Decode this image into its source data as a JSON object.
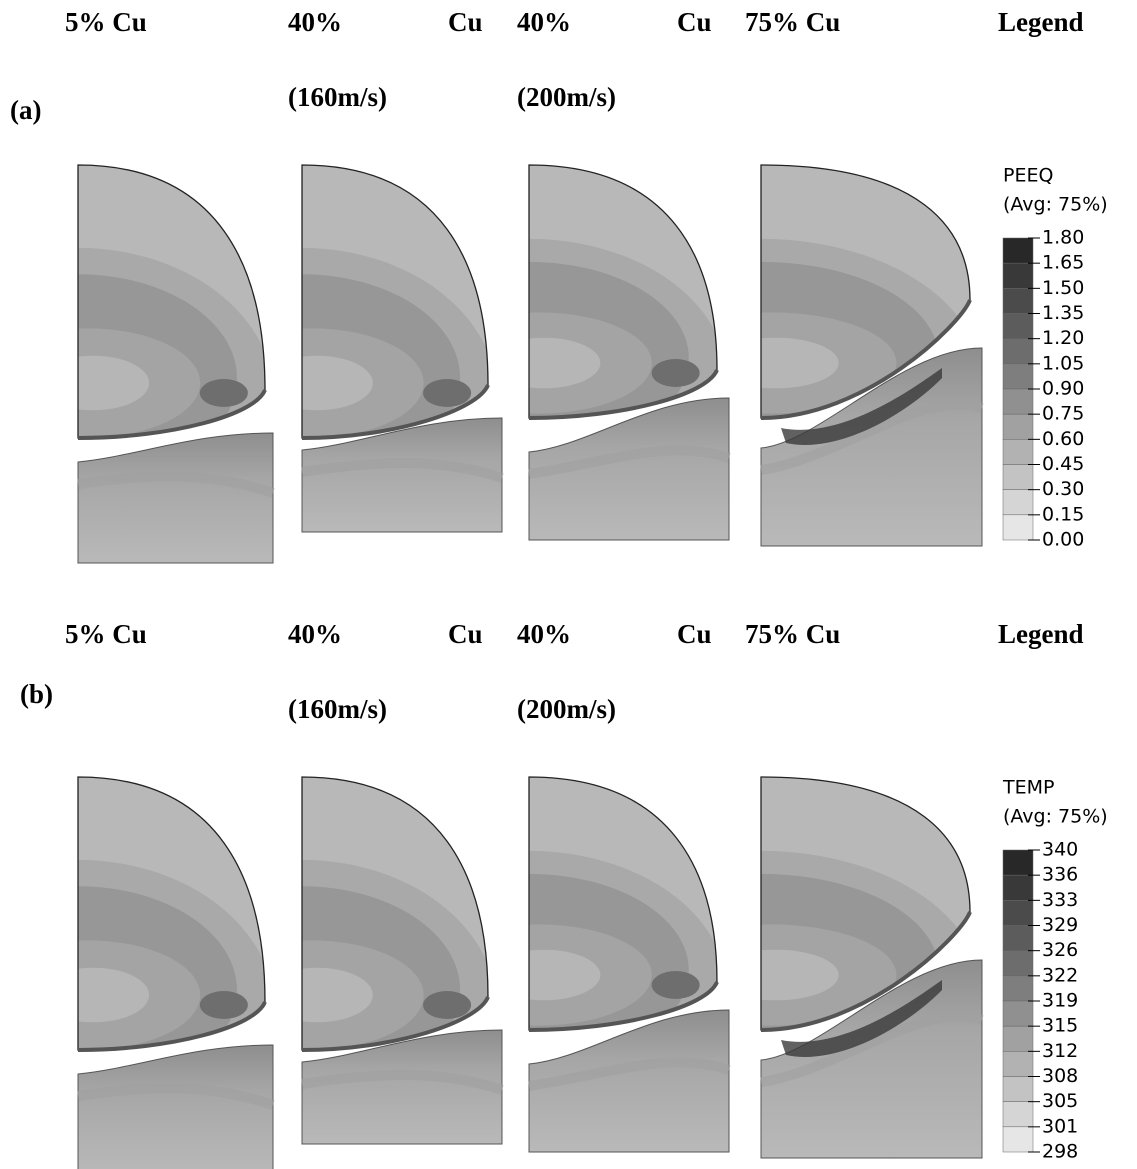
{
  "panels": [
    {
      "label": "(a)",
      "columns": [
        {
          "line1": [
            "5% Cu"
          ]
        },
        {
          "line1": [
            "40%",
            "Cu"
          ],
          "line2": "(160m/s)"
        },
        {
          "line1": [
            "40%",
            "Cu"
          ],
          "line2": "(200m/s)"
        },
        {
          "line1": [
            "75% Cu"
          ]
        },
        {
          "line1": [
            "Legend"
          ]
        }
      ],
      "legend": {
        "title": "PEEQ",
        "subtitle": "(Avg: 75%)",
        "labels": [
          "1.80",
          "1.65",
          "1.50",
          "1.35",
          "1.20",
          "1.05",
          "0.90",
          "0.75",
          "0.60",
          "0.45",
          "0.30",
          "0.15",
          "0.00"
        ]
      }
    },
    {
      "label": "(b)",
      "columns": [
        {
          "line1": [
            "5% Cu"
          ]
        },
        {
          "line1": [
            "40%",
            "Cu"
          ],
          "line2": "(160m/s)"
        },
        {
          "line1": [
            "40%",
            "Cu"
          ],
          "line2": "(200m/s)"
        },
        {
          "line1": [
            "75% Cu"
          ]
        },
        {
          "line1": [
            "Legend"
          ]
        }
      ],
      "legend": {
        "title": "TEMP",
        "subtitle": "(Avg: 75%)",
        "labels": [
          "340",
          "336",
          "333",
          "329",
          "326",
          "322",
          "319",
          "315",
          "312",
          "308",
          "305",
          "301",
          "298"
        ]
      }
    }
  ]
}
